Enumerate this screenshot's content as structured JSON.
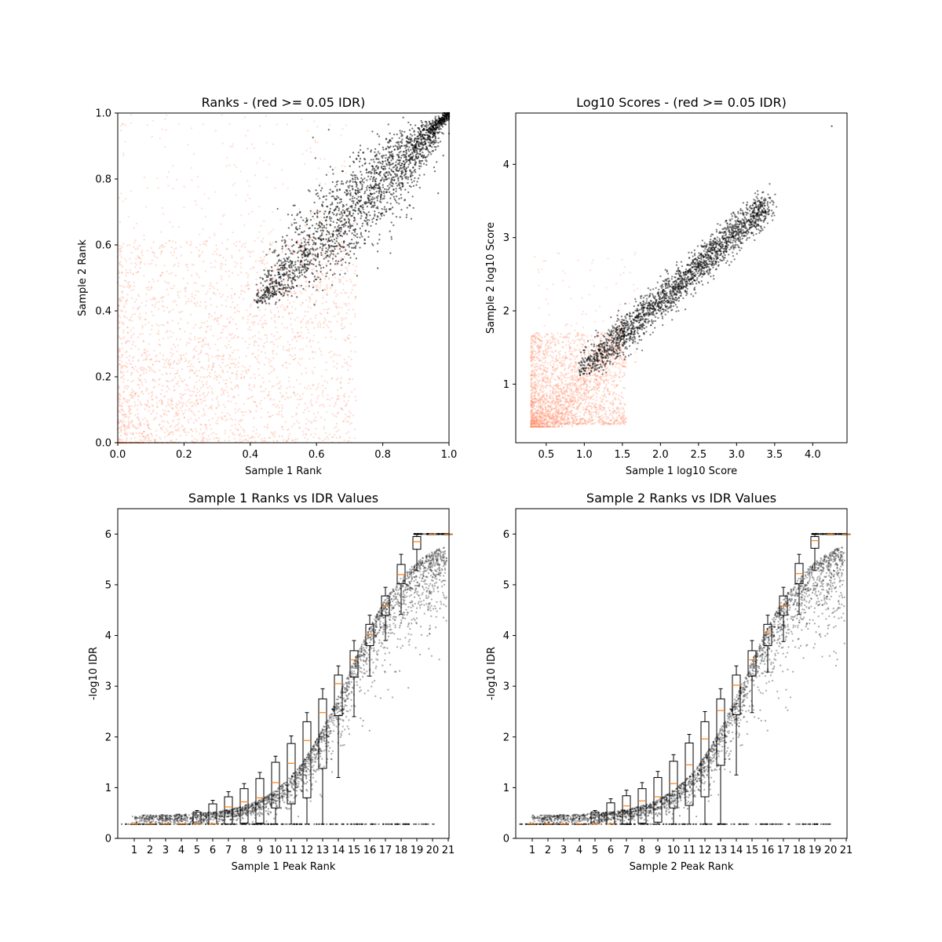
{
  "chart_data": [
    {
      "type": "scatter",
      "title": "Ranks - (red >= 0.05 IDR)",
      "xlabel": "Sample 1 Rank",
      "ylabel": "Sample 2 Rank",
      "xlim": [
        0,
        1
      ],
      "ylim": [
        0,
        1
      ],
      "xticks": [
        "0.0",
        "0.2",
        "0.4",
        "0.6",
        "0.8",
        "1.0"
      ],
      "yticks": [
        "0.0",
        "0.2",
        "0.4",
        "0.6",
        "0.8",
        "1.0"
      ],
      "colors": {
        "passing": "#000000",
        "failing": "#ff9473"
      },
      "series_description": {
        "passing_region": {
          "x_range": [
            0.42,
            1.0
          ],
          "y_range": [
            0.41,
            1.0
          ],
          "diagonal_band": true
        },
        "failing_region": {
          "x_range": [
            0.0,
            0.72
          ],
          "y_range": [
            0.0,
            0.6
          ],
          "density_high_at": [
            0.0,
            0.0
          ]
        }
      }
    },
    {
      "type": "scatter",
      "title": "Log10 Scores - (red >= 0.05 IDR)",
      "xlabel": "Sample 1 log10 Score",
      "ylabel": "Sample 2 log10 Score",
      "xlim": [
        0.1,
        4.45
      ],
      "ylim": [
        0.2,
        4.7
      ],
      "xticks": [
        "0.5",
        "1.0",
        "1.5",
        "2.0",
        "2.5",
        "3.0",
        "3.5",
        "4.0"
      ],
      "yticks": [
        "1",
        "2",
        "3",
        "4"
      ],
      "colors": {
        "passing": "#000000",
        "failing": "#ff9473"
      },
      "series_description": {
        "passing_region": {
          "x_range": [
            0.92,
            3.5
          ],
          "y_range": [
            1.12,
            3.6
          ],
          "outlier": [
            4.25,
            4.52
          ]
        },
        "failing_region": {
          "x_range": [
            0.28,
            1.6
          ],
          "y_range": [
            0.4,
            1.8
          ]
        }
      }
    },
    {
      "type": "box",
      "title": "Sample 1 Ranks vs IDR Values",
      "xlabel": "Sample 1 Peak Rank",
      "ylabel": "-log10 IDR",
      "ylim": [
        0,
        6.5
      ],
      "categories": [
        "1",
        "2",
        "3",
        "4",
        "5",
        "6",
        "7",
        "8",
        "9",
        "10",
        "11",
        "12",
        "13",
        "14",
        "15",
        "16",
        "17",
        "18",
        "19",
        "20",
        "21"
      ],
      "yticks": [
        "0",
        "1",
        "2",
        "3",
        "4",
        "5",
        "6"
      ],
      "boxes": [
        {
          "q1": 0.28,
          "med": 0.28,
          "q3": 0.28,
          "lo": 0.28,
          "hi": 0.28
        },
        {
          "q1": 0.28,
          "med": 0.28,
          "q3": 0.28,
          "lo": 0.28,
          "hi": 0.28
        },
        {
          "q1": 0.28,
          "med": 0.28,
          "q3": 0.28,
          "lo": 0.28,
          "hi": 0.28
        },
        {
          "q1": 0.28,
          "med": 0.28,
          "q3": 0.28,
          "lo": 0.28,
          "hi": 0.28
        },
        {
          "q1": 0.28,
          "med": 0.28,
          "q3": 0.52,
          "lo": 0.28,
          "hi": 0.55
        },
        {
          "q1": 0.28,
          "med": 0.28,
          "q3": 0.68,
          "lo": 0.28,
          "hi": 0.75
        },
        {
          "q1": 0.28,
          "med": 0.62,
          "q3": 0.82,
          "lo": 0.28,
          "hi": 0.92
        },
        {
          "q1": 0.3,
          "med": 0.72,
          "q3": 0.98,
          "lo": 0.28,
          "hi": 1.08
        },
        {
          "q1": 0.3,
          "med": 0.8,
          "q3": 1.18,
          "lo": 0.28,
          "hi": 1.3
        },
        {
          "q1": 0.6,
          "med": 1.1,
          "q3": 1.5,
          "lo": 0.28,
          "hi": 1.62
        },
        {
          "q1": 0.68,
          "med": 1.48,
          "q3": 1.87,
          "lo": 0.28,
          "hi": 2.02
        },
        {
          "q1": 0.8,
          "med": 1.93,
          "q3": 2.3,
          "lo": 0.28,
          "hi": 2.48
        },
        {
          "q1": 1.38,
          "med": 2.48,
          "q3": 2.75,
          "lo": 0.28,
          "hi": 2.95
        },
        {
          "q1": 2.42,
          "med": 3.05,
          "q3": 3.22,
          "lo": 1.2,
          "hi": 3.4
        },
        {
          "q1": 3.18,
          "med": 3.52,
          "q3": 3.7,
          "lo": 2.4,
          "hi": 3.9
        },
        {
          "q1": 3.8,
          "med": 4.02,
          "q3": 4.22,
          "lo": 3.2,
          "hi": 4.4
        },
        {
          "q1": 4.4,
          "med": 4.58,
          "q3": 4.78,
          "lo": 3.9,
          "hi": 4.95
        },
        {
          "q1": 5.02,
          "med": 5.2,
          "q3": 5.4,
          "lo": 4.42,
          "hi": 5.6
        },
        {
          "q1": 5.7,
          "med": 5.85,
          "q3": 5.95,
          "lo": 5.28,
          "hi": 6.0
        },
        {
          "q1": 6.0,
          "med": 6.0,
          "q3": 6.0,
          "lo": 6.0,
          "hi": 6.0
        },
        {
          "q1": 6.0,
          "med": 6.0,
          "q3": 6.0,
          "lo": 6.0,
          "hi": 6.0
        }
      ]
    },
    {
      "type": "box",
      "title": "Sample 2 Ranks vs IDR Values",
      "xlabel": "Sample 2 Peak Rank",
      "ylabel": "-log10 IDR",
      "ylim": [
        0,
        6.5
      ],
      "categories": [
        "1",
        "2",
        "3",
        "4",
        "5",
        "6",
        "7",
        "8",
        "9",
        "10",
        "11",
        "12",
        "13",
        "14",
        "15",
        "16",
        "17",
        "18",
        "19",
        "20",
        "21"
      ],
      "yticks": [
        "0",
        "1",
        "2",
        "3",
        "4",
        "5",
        "6"
      ],
      "boxes": [
        {
          "q1": 0.28,
          "med": 0.28,
          "q3": 0.28,
          "lo": 0.28,
          "hi": 0.28
        },
        {
          "q1": 0.28,
          "med": 0.28,
          "q3": 0.28,
          "lo": 0.28,
          "hi": 0.28
        },
        {
          "q1": 0.28,
          "med": 0.28,
          "q3": 0.28,
          "lo": 0.28,
          "hi": 0.28
        },
        {
          "q1": 0.28,
          "med": 0.28,
          "q3": 0.28,
          "lo": 0.28,
          "hi": 0.28
        },
        {
          "q1": 0.28,
          "med": 0.28,
          "q3": 0.52,
          "lo": 0.28,
          "hi": 0.55
        },
        {
          "q1": 0.28,
          "med": 0.28,
          "q3": 0.7,
          "lo": 0.28,
          "hi": 0.78
        },
        {
          "q1": 0.28,
          "med": 0.64,
          "q3": 0.84,
          "lo": 0.28,
          "hi": 0.95
        },
        {
          "q1": 0.3,
          "med": 0.74,
          "q3": 0.98,
          "lo": 0.28,
          "hi": 1.1
        },
        {
          "q1": 0.32,
          "med": 0.82,
          "q3": 1.2,
          "lo": 0.28,
          "hi": 1.32
        },
        {
          "q1": 0.6,
          "med": 1.08,
          "q3": 1.52,
          "lo": 0.28,
          "hi": 1.65
        },
        {
          "q1": 0.65,
          "med": 1.45,
          "q3": 1.88,
          "lo": 0.28,
          "hi": 2.05
        },
        {
          "q1": 0.82,
          "med": 1.96,
          "q3": 2.3,
          "lo": 0.28,
          "hi": 2.5
        },
        {
          "q1": 1.44,
          "med": 2.52,
          "q3": 2.75,
          "lo": 0.28,
          "hi": 2.95
        },
        {
          "q1": 2.44,
          "med": 3.02,
          "q3": 3.22,
          "lo": 1.25,
          "hi": 3.4
        },
        {
          "q1": 3.2,
          "med": 3.52,
          "q3": 3.7,
          "lo": 2.48,
          "hi": 3.9
        },
        {
          "q1": 3.8,
          "med": 4.05,
          "q3": 4.22,
          "lo": 3.28,
          "hi": 4.4
        },
        {
          "q1": 4.4,
          "med": 4.58,
          "q3": 4.78,
          "lo": 3.88,
          "hi": 4.95
        },
        {
          "q1": 5.02,
          "med": 5.22,
          "q3": 5.42,
          "lo": 4.42,
          "hi": 5.6
        },
        {
          "q1": 5.72,
          "med": 5.87,
          "q3": 5.95,
          "lo": 5.28,
          "hi": 6.0
        },
        {
          "q1": 6.0,
          "med": 6.0,
          "q3": 6.0,
          "lo": 6.0,
          "hi": 6.0
        },
        {
          "q1": 6.0,
          "med": 6.0,
          "q3": 6.0,
          "lo": 6.0,
          "hi": 6.0
        }
      ]
    }
  ]
}
